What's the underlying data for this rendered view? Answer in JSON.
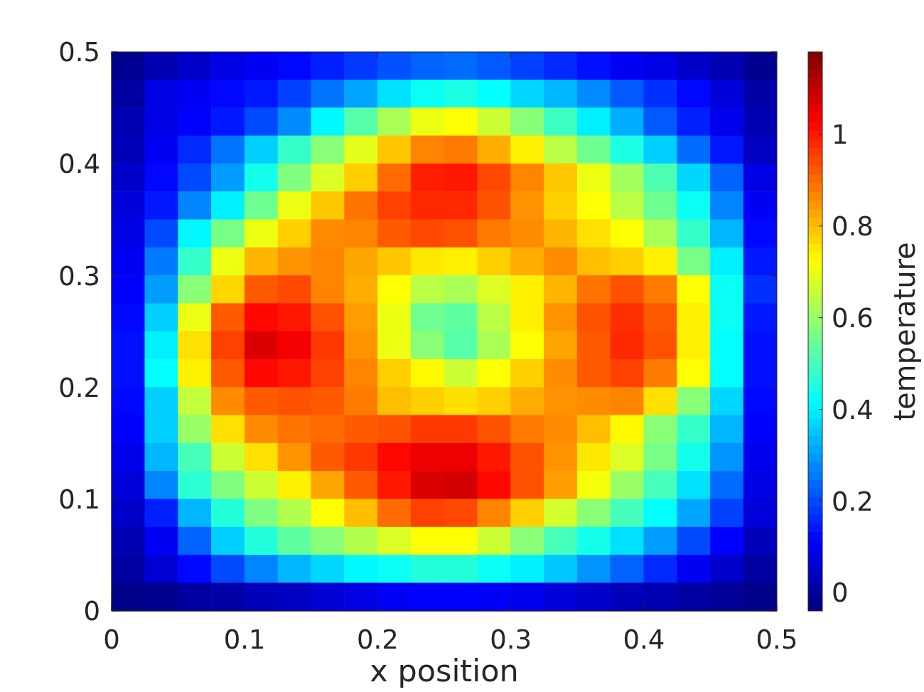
{
  "chart_data": {
    "type": "heatmap",
    "xlabel": "x position",
    "clabel": "temperature",
    "cells": [
      [
        -0.02,
        0.02,
        0.05,
        0.08,
        0.1,
        0.12,
        0.15,
        0.18,
        0.21,
        0.23,
        0.24,
        0.22,
        0.19,
        0.16,
        0.13,
        0.1,
        0.08,
        0.05,
        0.02,
        -0.02
      ],
      [
        0,
        0.08,
        0.1,
        0.12,
        0.14,
        0.19,
        0.25,
        0.31,
        0.38,
        0.43,
        0.45,
        0.42,
        0.37,
        0.33,
        0.28,
        0.22,
        0.17,
        0.12,
        0.07,
        0.01
      ],
      [
        0.02,
        0.08,
        0.11,
        0.14,
        0.2,
        0.28,
        0.41,
        0.52,
        0.62,
        0.7,
        0.72,
        0.66,
        0.58,
        0.49,
        0.4,
        0.32,
        0.22,
        0.15,
        0.09,
        0.02
      ],
      [
        0.03,
        0.1,
        0.16,
        0.25,
        0.36,
        0.48,
        0.58,
        0.69,
        0.79,
        0.87,
        0.88,
        0.82,
        0.74,
        0.64,
        0.55,
        0.45,
        0.36,
        0.24,
        0.14,
        0.04
      ],
      [
        0.05,
        0.12,
        0.2,
        0.3,
        0.44,
        0.57,
        0.68,
        0.78,
        0.9,
        0.99,
        1,
        0.94,
        0.87,
        0.79,
        0.7,
        0.61,
        0.51,
        0.37,
        0.23,
        0.08
      ],
      [
        0.07,
        0.14,
        0.27,
        0.4,
        0.55,
        0.7,
        0.79,
        0.89,
        0.95,
        0.98,
        0.98,
        0.93,
        0.85,
        0.78,
        0.72,
        0.64,
        0.55,
        0.43,
        0.27,
        0.1
      ],
      [
        0.08,
        0.2,
        0.41,
        0.56,
        0.7,
        0.78,
        0.86,
        0.87,
        0.92,
        0.94,
        0.93,
        0.88,
        0.86,
        0.81,
        0.76,
        0.72,
        0.62,
        0.48,
        0.33,
        0.12
      ],
      [
        0.1,
        0.26,
        0.48,
        0.7,
        0.81,
        0.85,
        0.87,
        0.83,
        0.79,
        0.75,
        0.74,
        0.78,
        0.82,
        0.86,
        0.8,
        0.78,
        0.74,
        0.56,
        0.4,
        0.14
      ],
      [
        0.11,
        0.3,
        0.58,
        0.77,
        0.92,
        0.94,
        0.87,
        0.82,
        0.72,
        0.64,
        0.62,
        0.68,
        0.74,
        0.81,
        0.89,
        0.93,
        0.88,
        0.72,
        0.43,
        0.17
      ],
      [
        0.12,
        0.36,
        0.7,
        0.92,
        1.02,
        1,
        0.93,
        0.84,
        0.7,
        0.55,
        0.53,
        0.64,
        0.74,
        0.85,
        0.93,
        0.97,
        0.92,
        0.74,
        0.43,
        0.14
      ],
      [
        0.13,
        0.4,
        0.76,
        0.95,
        1.07,
        1.04,
        0.96,
        0.85,
        0.7,
        0.58,
        0.52,
        0.62,
        0.72,
        0.83,
        0.92,
        0.98,
        0.93,
        0.74,
        0.42,
        0.13
      ],
      [
        0.13,
        0.42,
        0.74,
        0.92,
        1.02,
        1,
        0.95,
        0.87,
        0.78,
        0.73,
        0.66,
        0.72,
        0.78,
        0.86,
        0.92,
        0.95,
        0.88,
        0.72,
        0.42,
        0.13
      ],
      [
        0.12,
        0.36,
        0.65,
        0.86,
        0.92,
        0.93,
        0.92,
        0.88,
        0.8,
        0.78,
        0.76,
        0.78,
        0.82,
        0.85,
        0.86,
        0.87,
        0.76,
        0.58,
        0.37,
        0.12
      ],
      [
        0.11,
        0.36,
        0.6,
        0.76,
        0.86,
        0.89,
        0.9,
        0.92,
        0.93,
        0.96,
        0.96,
        0.93,
        0.88,
        0.86,
        0.8,
        0.73,
        0.58,
        0.48,
        0.33,
        0.11
      ],
      [
        0.09,
        0.33,
        0.5,
        0.66,
        0.76,
        0.85,
        0.92,
        0.96,
        1.02,
        1.05,
        1.05,
        1,
        0.93,
        0.85,
        0.75,
        0.68,
        0.56,
        0.44,
        0.29,
        0.09
      ],
      [
        0.07,
        0.27,
        0.47,
        0.57,
        0.66,
        0.74,
        0.83,
        0.92,
        1,
        1.07,
        1.08,
        1.02,
        0.93,
        0.84,
        0.71,
        0.6,
        0.5,
        0.38,
        0.24,
        0.08
      ],
      [
        0.05,
        0.15,
        0.33,
        0.46,
        0.57,
        0.63,
        0.72,
        0.8,
        0.9,
        0.95,
        0.94,
        0.87,
        0.78,
        0.67,
        0.58,
        0.5,
        0.42,
        0.31,
        0.19,
        0.07
      ],
      [
        0.02,
        0.1,
        0.23,
        0.36,
        0.46,
        0.53,
        0.58,
        0.63,
        0.68,
        0.72,
        0.72,
        0.66,
        0.58,
        0.5,
        0.44,
        0.38,
        0.3,
        0.2,
        0.11,
        0.03
      ],
      [
        0,
        0.06,
        0.12,
        0.2,
        0.27,
        0.33,
        0.37,
        0.41,
        0.43,
        0.46,
        0.46,
        0.43,
        0.4,
        0.35,
        0.29,
        0.23,
        0.16,
        0.1,
        0.05,
        0
      ],
      [
        -0.03,
        -0.02,
        0,
        0.01,
        0.03,
        0.04,
        0.06,
        0.08,
        0.1,
        0.11,
        0.11,
        0.1,
        0.09,
        0.07,
        0.05,
        0.03,
        0.02,
        0,
        -0.01,
        -0.03
      ]
    ],
    "xlim": [
      0,
      0.5
    ],
    "ylim": [
      0,
      0.5
    ],
    "xticks": [
      0,
      0.1,
      0.2,
      0.3,
      0.4,
      0.5
    ],
    "yticks": [
      0,
      0.1,
      0.2,
      0.3,
      0.4,
      0.5
    ],
    "clim": [
      -0.04,
      1.18
    ],
    "cticks": [
      0,
      0.2,
      0.4,
      0.6,
      0.8,
      1
    ]
  }
}
